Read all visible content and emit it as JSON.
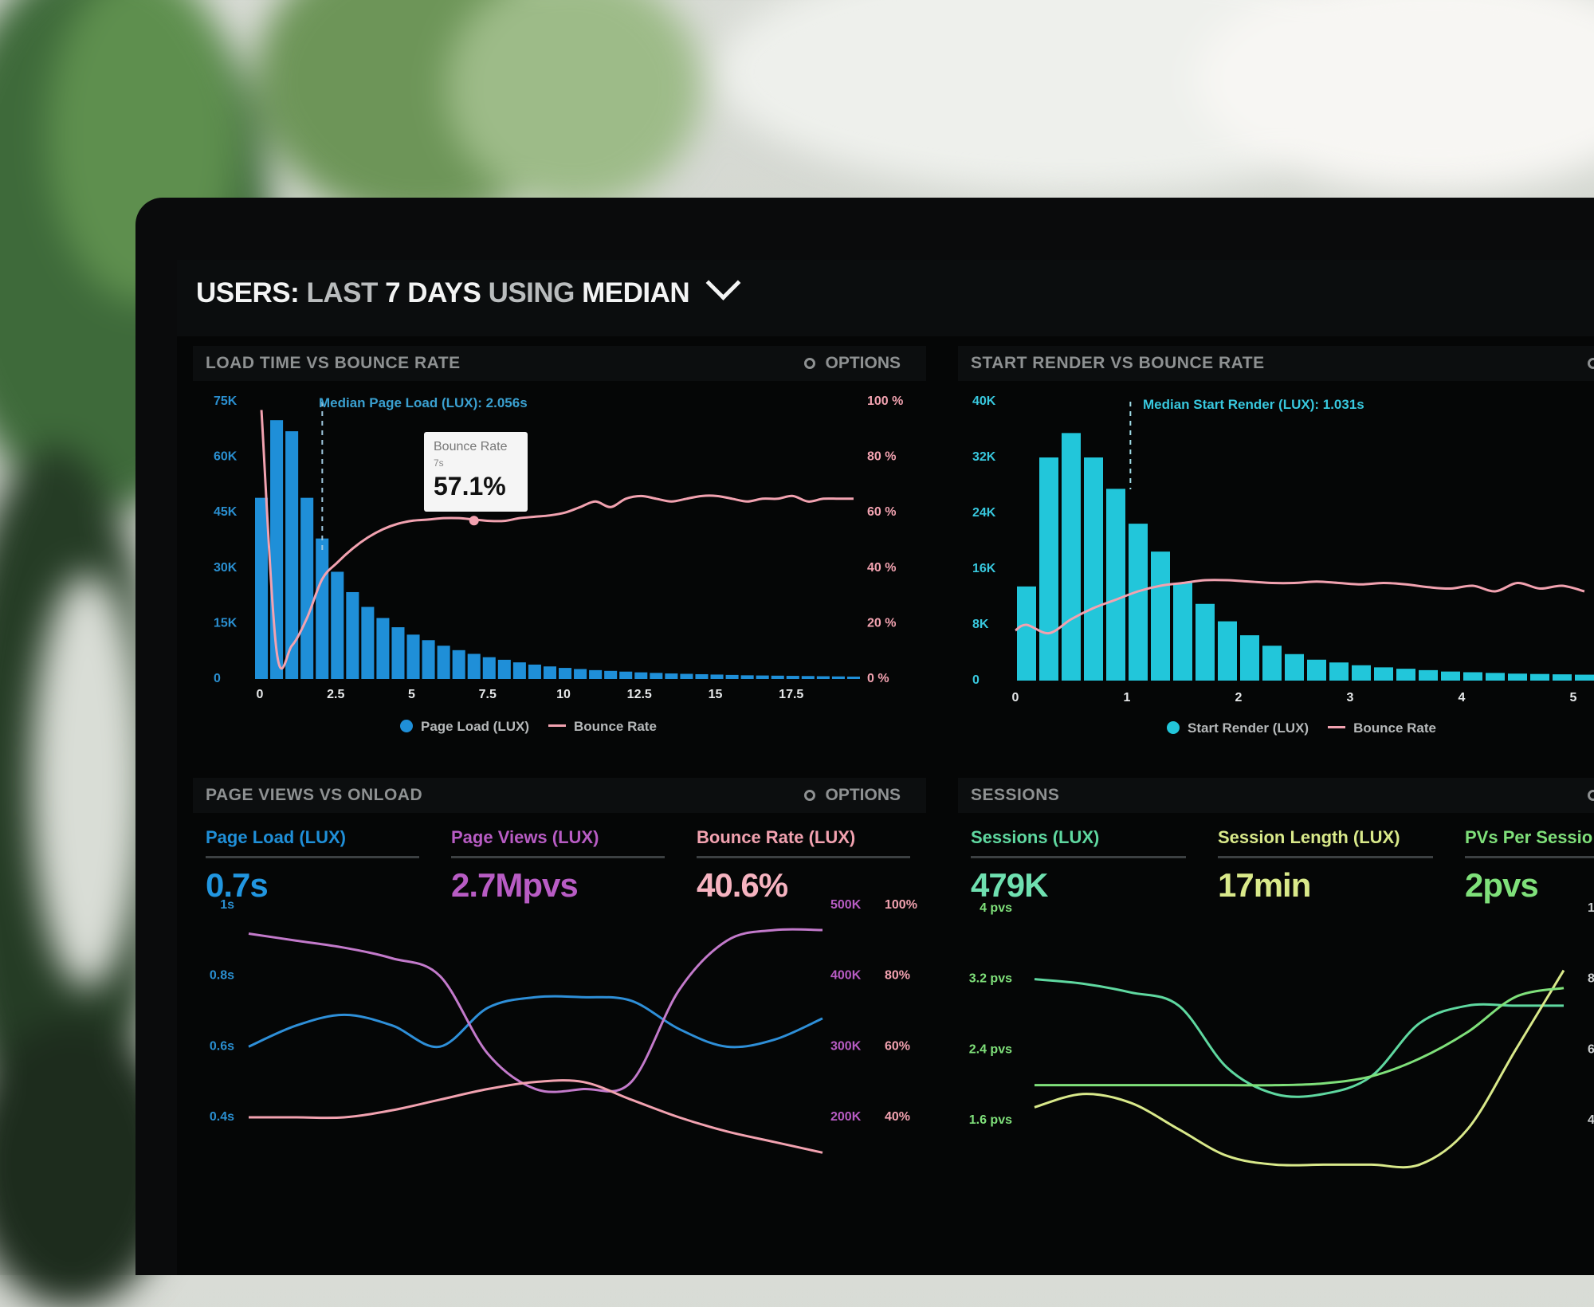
{
  "header": {
    "title_users": "USERS:",
    "title_last": "LAST",
    "title_days": "7 DAYS",
    "title_using": "USING",
    "title_median": "MEDIAN"
  },
  "panels": {
    "load_time": {
      "title": "LOAD TIME VS BOUNCE RATE",
      "options": "OPTIONS",
      "median_label": "Median Page Load (LUX): 2.056s",
      "tooltip": {
        "title": "Bounce Rate",
        "sub": "7s",
        "value": "57.1%"
      },
      "legend": {
        "series1": "Page Load (LUX)",
        "series2": "Bounce Rate"
      },
      "y_left": [
        "75K",
        "60K",
        "45K",
        "30K",
        "15K",
        "0"
      ],
      "y_right": [
        "100 %",
        "80 %",
        "60 %",
        "40 %",
        "20 %",
        "0 %"
      ],
      "x_ticks": [
        "0",
        "2.5",
        "5",
        "7.5",
        "10",
        "12.5",
        "15",
        "17.5"
      ]
    },
    "start_render": {
      "title": "START RENDER VS BOUNCE RATE",
      "median_label": "Median Start Render (LUX): 1.031s",
      "legend": {
        "series1": "Start Render (LUX)",
        "series2": "Bounce Rate"
      },
      "y_left": [
        "40K",
        "32K",
        "24K",
        "16K",
        "8K",
        "0"
      ],
      "x_ticks": [
        "0",
        "1",
        "2",
        "3",
        "4",
        "5"
      ]
    },
    "page_views": {
      "title": "PAGE VIEWS VS ONLOAD",
      "options": "OPTIONS",
      "metrics": [
        {
          "label": "Page Load (LUX)",
          "value": "0.7s"
        },
        {
          "label": "Page Views (LUX)",
          "value": "2.7Mpvs"
        },
        {
          "label": "Bounce Rate (LUX)",
          "value": "40.6%"
        }
      ],
      "y_left": [
        "1s",
        "0.8s",
        "0.6s",
        "0.4s"
      ],
      "y_mid": [
        "500K",
        "400K",
        "300K",
        "200K"
      ],
      "y_right": [
        "100%",
        "80%",
        "60%",
        "40%"
      ]
    },
    "sessions": {
      "title": "SESSIONS",
      "metrics": [
        {
          "label": "Sessions (LUX)",
          "value": "479K"
        },
        {
          "label": "Session Length (LUX)",
          "value": "17min"
        },
        {
          "label": "PVs Per Sessio",
          "value": "2pvs"
        }
      ],
      "y_left": [
        "4 pvs",
        "3.2 pvs",
        "2.4 pvs",
        "1.6 pvs"
      ],
      "y_right_partial": [
        "1",
        "8",
        "6",
        "4"
      ]
    }
  },
  "colors": {
    "page_load_blue": "#1f8fd8",
    "start_render_cyan": "#22c6da",
    "bounce_pink": "#f2a2b0",
    "page_views_purple": "#b85cc4",
    "sessions_green": "#5fd8a0",
    "session_length_yellow": "#d9e98a",
    "pvs_green": "#7fe07a"
  },
  "chart_data": [
    {
      "type": "bar",
      "title": "LOAD TIME VS BOUNCE RATE",
      "xlabel": "",
      "ylabel": "",
      "ylim": [
        0,
        75000
      ],
      "y2lim": [
        0,
        100
      ],
      "x": [
        0,
        0.5,
        1,
        1.5,
        2,
        2.5,
        3,
        3.5,
        4,
        4.5,
        5,
        5.5,
        6,
        6.5,
        7,
        7.5,
        8,
        8.5,
        9,
        9.5,
        10,
        10.5,
        11,
        11.5,
        12,
        12.5,
        13,
        13.5,
        14,
        14.5,
        15,
        15.5,
        16,
        16.5,
        17,
        17.5,
        18,
        18.5,
        19,
        19.5
      ],
      "series": [
        {
          "name": "Page Load (LUX)",
          "values": [
            49000,
            70000,
            67000,
            49000,
            38000,
            29000,
            23500,
            19500,
            16500,
            14000,
            12000,
            10500,
            9000,
            7800,
            6800,
            5900,
            5200,
            4500,
            3900,
            3400,
            3000,
            2700,
            2400,
            2200,
            2000,
            1800,
            1650,
            1500,
            1400,
            1300,
            1200,
            1100,
            1000,
            950,
            900,
            850,
            800,
            750,
            700,
            650
          ]
        },
        {
          "name": "Bounce Rate",
          "values": [
            97,
            10,
            12,
            22,
            36,
            42,
            47,
            51,
            54,
            56,
            57.1,
            57.5,
            58,
            58,
            57.5,
            57,
            57,
            58,
            58.5,
            59,
            60,
            62,
            64,
            62,
            65,
            66,
            65,
            64,
            65,
            66,
            66,
            65,
            64,
            65,
            65,
            66,
            64,
            65,
            65,
            65
          ]
        }
      ]
    },
    {
      "type": "bar",
      "title": "START RENDER VS BOUNCE RATE",
      "xlabel": "",
      "ylabel": "",
      "ylim": [
        0,
        40000
      ],
      "x": [
        0.1,
        0.3,
        0.5,
        0.7,
        0.9,
        1.1,
        1.3,
        1.5,
        1.7,
        1.9,
        2.1,
        2.3,
        2.5,
        2.7,
        2.9,
        3.1,
        3.3,
        3.5,
        3.7,
        3.9,
        4.1,
        4.3,
        4.5,
        4.7,
        4.9,
        5.1
      ],
      "series": [
        {
          "name": "Start Render (LUX)",
          "values": [
            13500,
            32000,
            35500,
            32000,
            27500,
            22500,
            18500,
            14000,
            11000,
            8500,
            6500,
            5000,
            3800,
            3000,
            2600,
            2200,
            1900,
            1700,
            1500,
            1300,
            1200,
            1100,
            1000,
            950,
            900,
            850
          ]
        },
        {
          "name": "Bounce Rate",
          "values": [
            20,
            17,
            22,
            26,
            29,
            32,
            34,
            35,
            36,
            36,
            35.5,
            35,
            35,
            35.5,
            35,
            34.5,
            35,
            34.5,
            33.5,
            33,
            34,
            32,
            35,
            33,
            34,
            32
          ]
        }
      ]
    },
    {
      "type": "line",
      "title": "PAGE VIEWS VS ONLOAD",
      "x": [
        0,
        1,
        2,
        3,
        4,
        5,
        6,
        7,
        8,
        9,
        10,
        11,
        12
      ],
      "series": [
        {
          "name": "Page Load (LUX)",
          "values": [
            0.6,
            0.66,
            0.69,
            0.66,
            0.6,
            0.71,
            0.74,
            0.74,
            0.73,
            0.65,
            0.6,
            0.62,
            0.68
          ]
        },
        {
          "name": "Page Views (LUX)",
          "values": [
            0.92,
            0.9,
            0.88,
            0.85,
            0.8,
            0.58,
            0.48,
            0.48,
            0.5,
            0.76,
            0.9,
            0.93,
            0.93
          ]
        },
        {
          "name": "Bounce Rate (LUX)",
          "values": [
            0.4,
            0.4,
            0.4,
            0.42,
            0.45,
            0.48,
            0.5,
            0.5,
            0.45,
            0.4,
            0.36,
            0.33,
            0.3
          ]
        }
      ]
    },
    {
      "type": "line",
      "title": "SESSIONS",
      "x": [
        0,
        1,
        2,
        3,
        4,
        5,
        6,
        7,
        8,
        9,
        10,
        11
      ],
      "series": [
        {
          "name": "Sessions (LUX)",
          "values": [
            3.2,
            3.15,
            3.05,
            2.9,
            2.2,
            1.9,
            1.9,
            2.1,
            2.7,
            2.9,
            2.9,
            2.9
          ]
        },
        {
          "name": "Session Length (LUX)",
          "values": [
            1.75,
            1.9,
            1.8,
            1.5,
            1.2,
            1.1,
            1.1,
            1.1,
            1.1,
            1.5,
            2.4,
            3.3
          ]
        },
        {
          "name": "PVs Per Sessio",
          "values": [
            2.0,
            2.0,
            2.0,
            2.0,
            2.0,
            2.0,
            2.02,
            2.1,
            2.3,
            2.6,
            3.0,
            3.1
          ]
        }
      ]
    }
  ]
}
